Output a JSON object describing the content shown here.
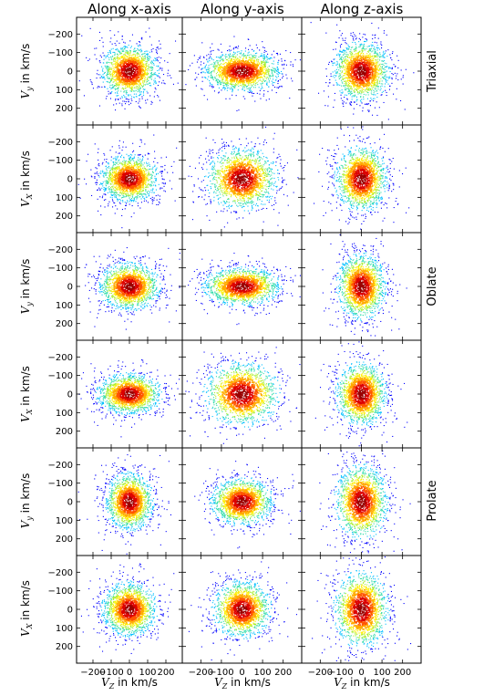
{
  "figure": {
    "column_titles": [
      "Along x-axis",
      "Along y-axis",
      "Along z-axis"
    ],
    "row_group_labels": [
      "Triaxial",
      "Oblate",
      "Prolate"
    ],
    "row_ylabels": [
      [
        "V",
        "y",
        " in km/s"
      ],
      [
        "V",
        "X",
        " in km/s"
      ],
      [
        "V",
        "y",
        " in km/s"
      ],
      [
        "V",
        "X",
        " in km/s"
      ],
      [
        "V",
        "y",
        " in km/s"
      ],
      [
        "V",
        "X",
        " in km/s"
      ]
    ],
    "xlabel_parts": [
      "V",
      "Z",
      " in km/s"
    ],
    "xtick_labels": [
      "−200",
      "−100",
      "0",
      "100",
      "200"
    ],
    "ytick_labels": [
      "200",
      "100",
      "0",
      "−100",
      "−200"
    ]
  },
  "chart_data": {
    "type": "scatter",
    "description_of_marks": "6x3 grid of velocity-distribution scatter panels; points coloured by local density (blue outer, cyan/green/yellow, red core)",
    "xlim": [
      -290,
      290
    ],
    "ylim": [
      -290,
      290
    ],
    "xticks": [
      -200,
      -100,
      0,
      100,
      200
    ],
    "yticks": [
      -200,
      -100,
      0,
      100,
      200
    ],
    "colors": [
      "#0000ff",
      "#00bfff",
      "#33ddaa",
      "#aaee33",
      "#ffee00",
      "#ffaa00",
      "#ff5500",
      "#dd0000",
      "#990000"
    ],
    "panels": [
      {
        "row": 0,
        "col": 0,
        "sigma_x": 68,
        "sigma_y": 62
      },
      {
        "row": 0,
        "col": 1,
        "sigma_x": 82,
        "sigma_y": 48
      },
      {
        "row": 0,
        "col": 2,
        "sigma_x": 60,
        "sigma_y": 70
      },
      {
        "row": 1,
        "col": 0,
        "sigma_x": 70,
        "sigma_y": 55
      },
      {
        "row": 1,
        "col": 1,
        "sigma_x": 76,
        "sigma_y": 74
      },
      {
        "row": 1,
        "col": 2,
        "sigma_x": 56,
        "sigma_y": 78
      },
      {
        "row": 2,
        "col": 0,
        "sigma_x": 74,
        "sigma_y": 56
      },
      {
        "row": 2,
        "col": 1,
        "sigma_x": 82,
        "sigma_y": 46
      },
      {
        "row": 2,
        "col": 2,
        "sigma_x": 52,
        "sigma_y": 78
      },
      {
        "row": 3,
        "col": 0,
        "sigma_x": 78,
        "sigma_y": 48
      },
      {
        "row": 3,
        "col": 1,
        "sigma_x": 80,
        "sigma_y": 76
      },
      {
        "row": 3,
        "col": 2,
        "sigma_x": 54,
        "sigma_y": 76
      },
      {
        "row": 4,
        "col": 0,
        "sigma_x": 58,
        "sigma_y": 68
      },
      {
        "row": 4,
        "col": 1,
        "sigma_x": 66,
        "sigma_y": 56
      },
      {
        "row": 4,
        "col": 2,
        "sigma_x": 56,
        "sigma_y": 88
      },
      {
        "row": 5,
        "col": 0,
        "sigma_x": 66,
        "sigma_y": 64
      },
      {
        "row": 5,
        "col": 1,
        "sigma_x": 62,
        "sigma_y": 68
      },
      {
        "row": 5,
        "col": 2,
        "sigma_x": 58,
        "sigma_y": 92
      }
    ]
  }
}
